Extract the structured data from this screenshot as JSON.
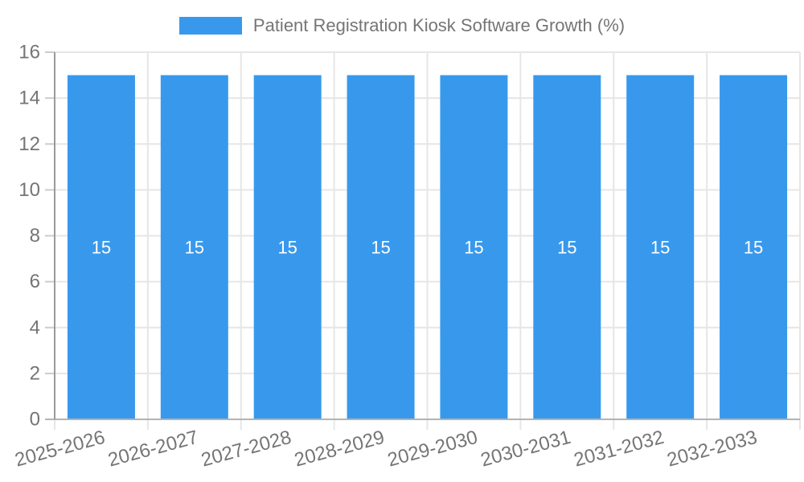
{
  "legend": {
    "label": "Patient Registration Kiosk Software Growth (%)"
  },
  "chart_data": {
    "type": "bar",
    "title": "Patient Registration Kiosk Software Growth (%)",
    "categories": [
      "2025-2026",
      "2026-2027",
      "2027-2028",
      "2028-2029",
      "2029-2030",
      "2030-2031",
      "2031-2032",
      "2032-2033"
    ],
    "series": [
      {
        "name": "Patient Registration Kiosk Software Growth (%)",
        "values": [
          15,
          15,
          15,
          15,
          15,
          15,
          15,
          15
        ]
      }
    ],
    "bar_value_labels": [
      "15",
      "15",
      "15",
      "15",
      "15",
      "15",
      "15",
      "15"
    ],
    "xlabel": "",
    "ylabel": "",
    "ylim": [
      0,
      16
    ],
    "yticks": [
      0,
      2,
      4,
      6,
      8,
      10,
      12,
      14,
      16
    ],
    "grid": "on",
    "legend_position": "top-center",
    "x_tick_rotation_deg": -15,
    "colors": {
      "bar": "#3899EC",
      "bar_label": "#FFFFFF",
      "axis_text": "#757575",
      "grid_line": "#E6E6E6",
      "y_axis_line": "#9A9A9A",
      "baseline": "#B3B3B3",
      "minor_tick": "#CCCCCC"
    }
  }
}
